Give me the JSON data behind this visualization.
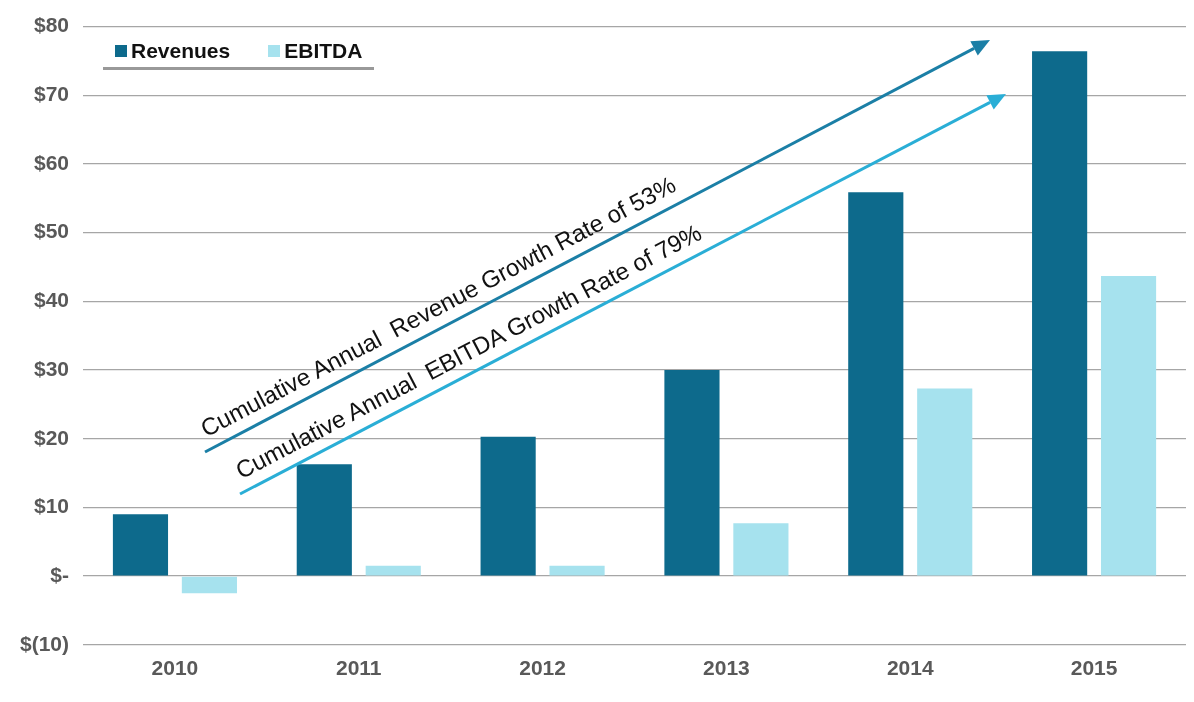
{
  "chart_data": {
    "type": "bar",
    "categories": [
      "2010",
      "2011",
      "2012",
      "2013",
      "2014",
      "2015"
    ],
    "series": [
      {
        "name": "Revenues",
        "color": "#0d6a8c",
        "values": [
          9,
          16.3,
          20.3,
          30,
          55.9,
          76.4
        ]
      },
      {
        "name": "EBITDA",
        "color": "#a6e2ee",
        "values": [
          -2.5,
          1.5,
          1.5,
          7.7,
          27.3,
          43.7
        ]
      }
    ],
    "ylim": [
      -10,
      80
    ],
    "yticks": [
      {
        "value": -10,
        "label": "$(10)"
      },
      {
        "value": 0,
        "label": "$-"
      },
      {
        "value": 10,
        "label": "$10"
      },
      {
        "value": 20,
        "label": "$20"
      },
      {
        "value": 30,
        "label": "$30"
      },
      {
        "value": 40,
        "label": "$40"
      },
      {
        "value": 50,
        "label": "$50"
      },
      {
        "value": 60,
        "label": "$60"
      },
      {
        "value": 70,
        "label": "$70"
      },
      {
        "value": 80,
        "label": "$80"
      }
    ],
    "grid": "y",
    "legend": "top left",
    "annotations": [
      "Cumulative Annual  Revenue Growth Rate of 53%",
      "Cumulative Annual  EBITDA Growth Rate of 79%"
    ]
  }
}
